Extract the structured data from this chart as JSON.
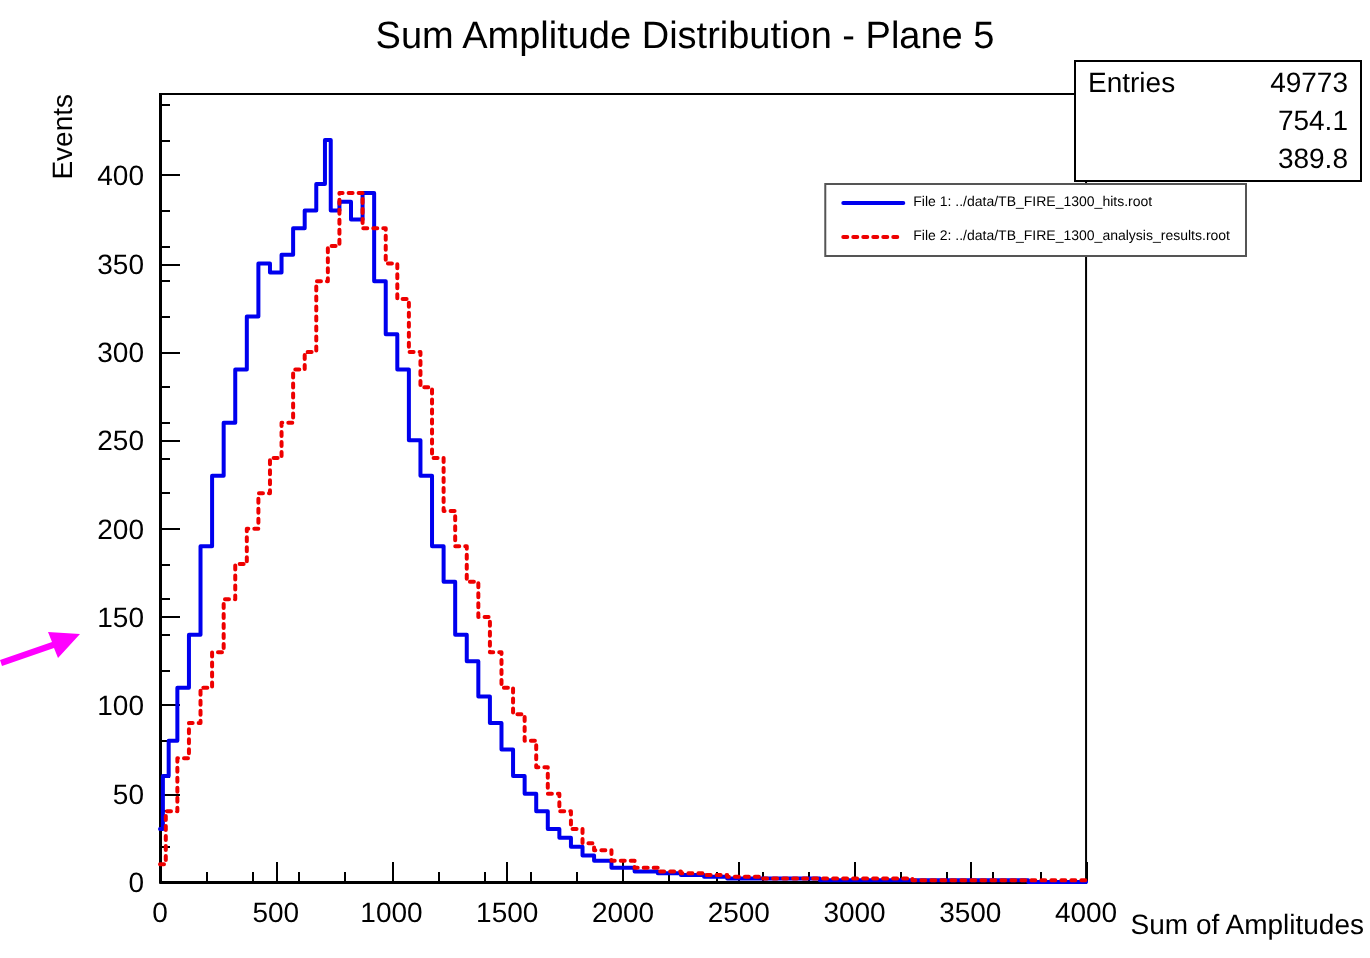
{
  "chart_data": {
    "type": "step",
    "title": "Sum Amplitude Distribution - Plane 5",
    "xlabel": "Sum of Amplitudes",
    "ylabel": "Events",
    "annotations": [
      "Entries",
      "49773",
      "754.1",
      "389.8"
    ],
    "xlim": [
      0,
      4000
    ],
    "xticks": [
      0,
      500,
      1000,
      1500,
      2000,
      2500,
      3000,
      3500,
      4000
    ],
    "ylim": [
      0,
      446
    ],
    "yticks": [
      0,
      50,
      100,
      150,
      200,
      250,
      300,
      350,
      400
    ],
    "grid": false,
    "legend": "top right",
    "marker": "none",
    "series": [
      {
        "name": "File 1: ../data/TB_FIRE_1300_hits.root",
        "color": "#0000ee",
        "line_style": "solid",
        "x": [
          0,
          25,
          50,
          100,
          150,
          200,
          250,
          300,
          350,
          400,
          450,
          500,
          550,
          600,
          650,
          700,
          725,
          750,
          800,
          850,
          900,
          950,
          1000,
          1050,
          1100,
          1150,
          1200,
          1250,
          1300,
          1350,
          1400,
          1450,
          1500,
          1550,
          1600,
          1650,
          1700,
          1750,
          1800,
          1850,
          1900,
          2000,
          2100,
          2200,
          2300,
          2400,
          2500,
          2700,
          3000,
          3500,
          4000
        ],
        "values": [
          30,
          60,
          80,
          110,
          140,
          190,
          230,
          260,
          290,
          320,
          350,
          345,
          355,
          370,
          380,
          395,
          420,
          380,
          385,
          375,
          390,
          340,
          310,
          290,
          250,
          230,
          190,
          170,
          140,
          125,
          105,
          90,
          75,
          60,
          50,
          40,
          30,
          25,
          20,
          15,
          12,
          8,
          6,
          5,
          4,
          3,
          2,
          2,
          1,
          1,
          0
        ]
      },
      {
        "name": "File 2: ../data/TB_FIRE_1300_analysis_results.root",
        "color": "#ee0000",
        "line_style": "dotted",
        "x": [
          0,
          50,
          100,
          150,
          200,
          250,
          300,
          350,
          400,
          450,
          500,
          550,
          600,
          650,
          700,
          750,
          800,
          850,
          900,
          950,
          1000,
          1050,
          1100,
          1150,
          1200,
          1250,
          1300,
          1350,
          1400,
          1450,
          1500,
          1550,
          1600,
          1650,
          1700,
          1750,
          1800,
          1850,
          1900,
          2000,
          2100,
          2200,
          2300,
          2400,
          2500,
          2700,
          3000,
          3500,
          4000
        ],
        "values": [
          10,
          40,
          70,
          90,
          110,
          130,
          160,
          180,
          200,
          220,
          240,
          260,
          290,
          300,
          340,
          360,
          390,
          390,
          370,
          370,
          350,
          330,
          300,
          280,
          240,
          210,
          190,
          170,
          150,
          130,
          110,
          95,
          80,
          65,
          50,
          40,
          30,
          22,
          18,
          12,
          8,
          6,
          5,
          4,
          3,
          2,
          2,
          1,
          1
        ]
      }
    ]
  }
}
